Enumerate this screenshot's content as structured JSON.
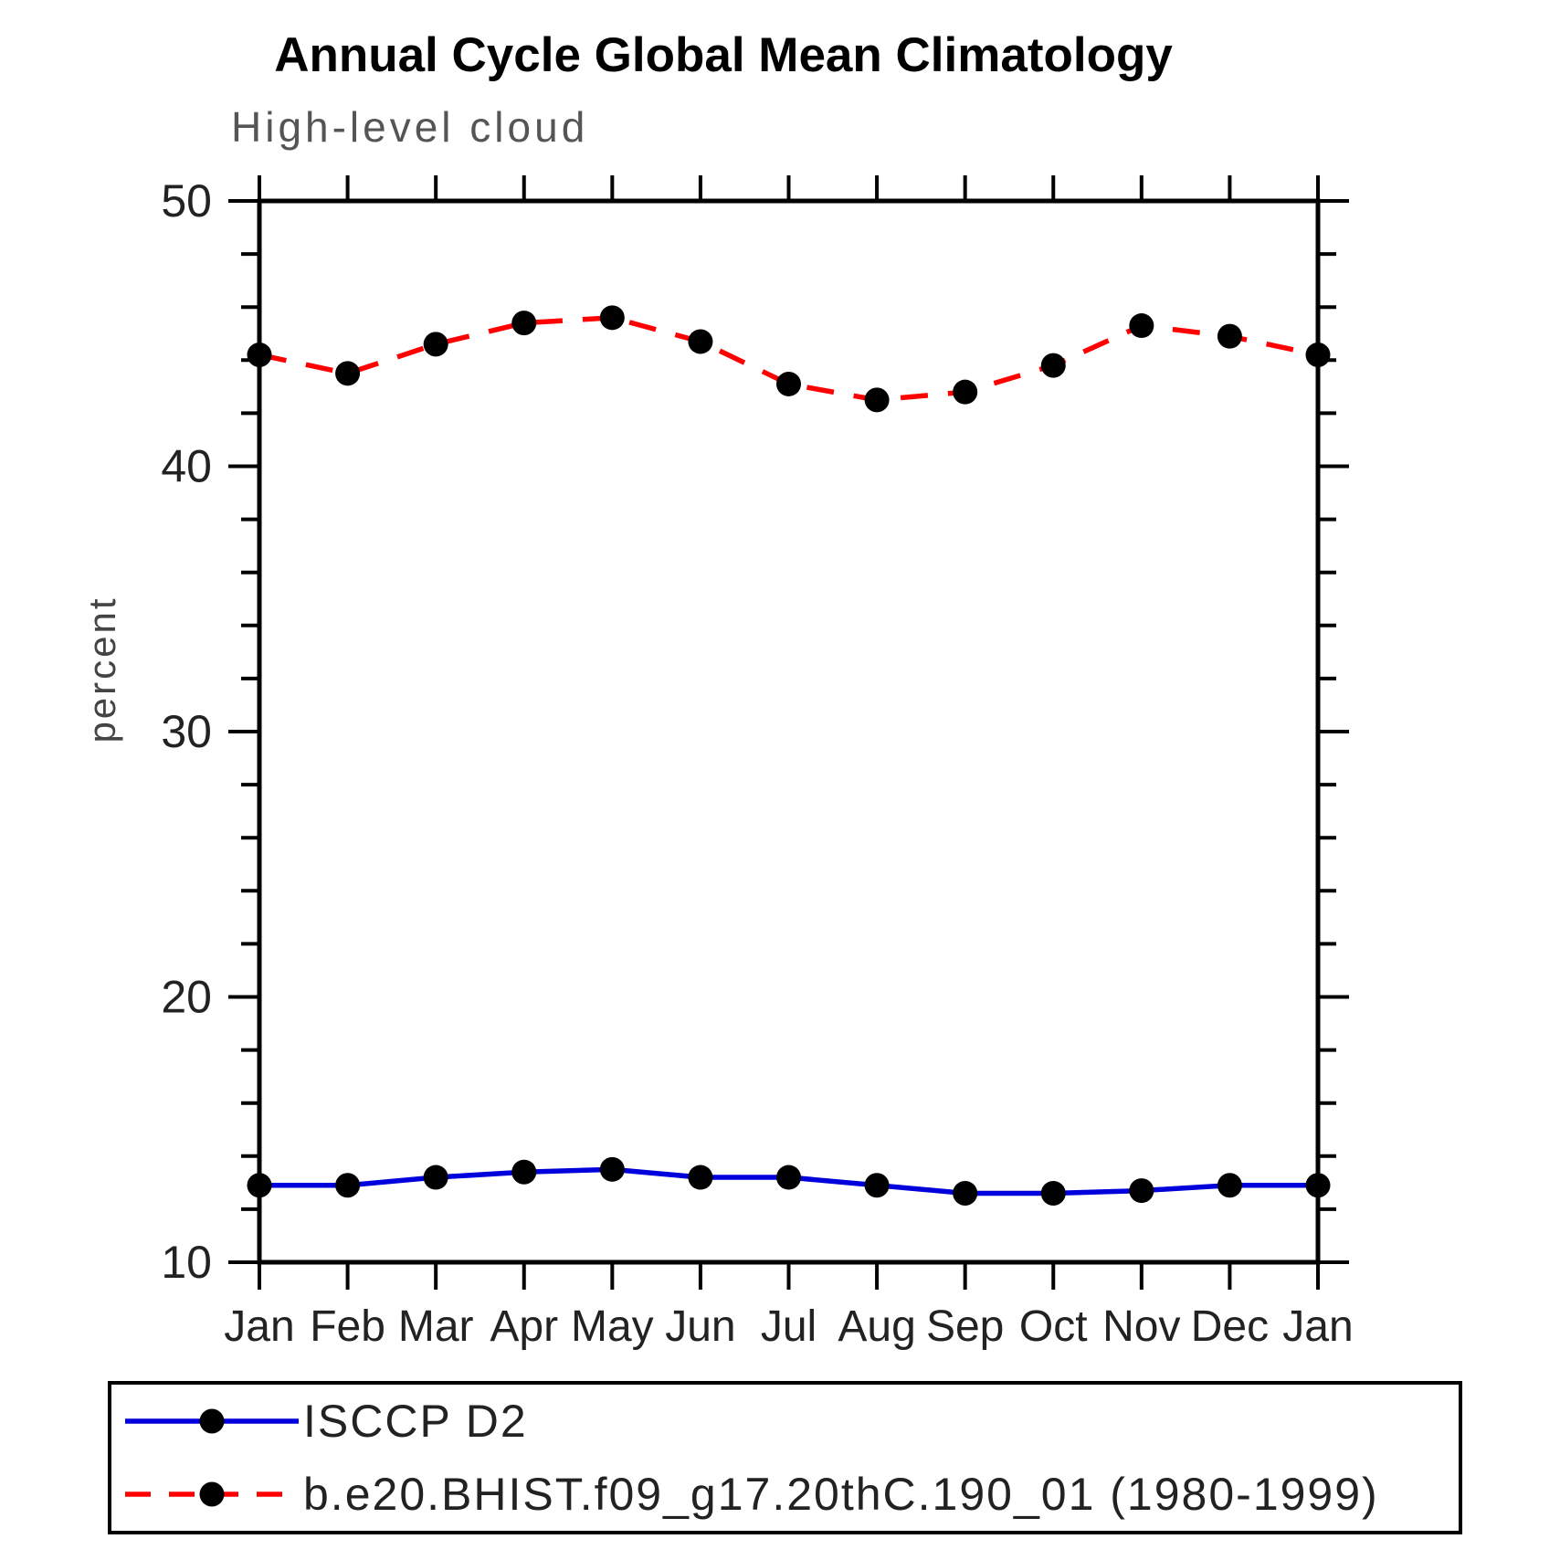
{
  "chart_data": {
    "type": "line",
    "title": "Annual Cycle Global Mean Climatology",
    "subtitle": "High-level cloud",
    "xlabel": "",
    "ylabel": "percent",
    "categories": [
      "Jan",
      "Feb",
      "Mar",
      "Apr",
      "May",
      "Jun",
      "Jul",
      "Aug",
      "Sep",
      "Oct",
      "Nov",
      "Dec",
      "Jan"
    ],
    "series": [
      {
        "name": "ISCCP D2",
        "color": "#0000dd",
        "line_style": "solid",
        "marker": "circle",
        "marker_color": "#000000",
        "values": [
          12.9,
          12.9,
          13.2,
          13.4,
          13.5,
          13.2,
          13.2,
          12.9,
          12.6,
          12.6,
          12.7,
          12.9,
          12.9
        ]
      },
      {
        "name": "b.e20.BHIST.f09_g17.20thC.190_01 (1980-1999)",
        "color": "#ff0000",
        "line_style": "dashed",
        "marker": "circle",
        "marker_color": "#000000",
        "values": [
          44.2,
          43.5,
          44.6,
          45.4,
          45.6,
          44.7,
          43.1,
          42.5,
          42.8,
          43.8,
          45.3,
          44.9,
          44.2
        ]
      }
    ],
    "ylim": [
      10,
      50
    ],
    "yticks": [
      10,
      20,
      30,
      40,
      50
    ],
    "minor_tick_interval": 2,
    "grid": false,
    "legend_position": "bottom",
    "axis_color": "#000000"
  }
}
